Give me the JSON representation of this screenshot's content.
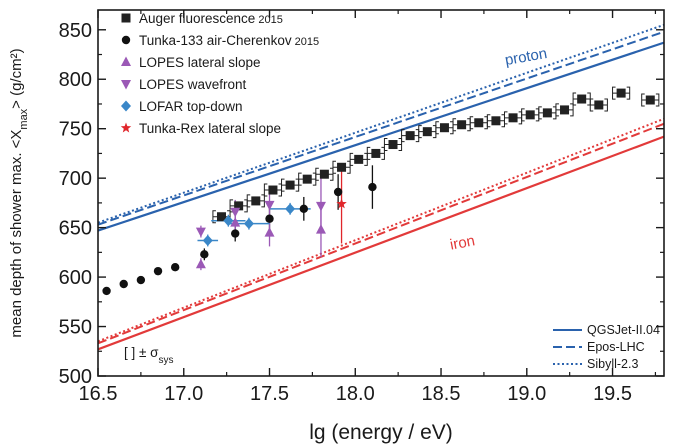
{
  "chart_data": {
    "type": "scatter",
    "xlabel": "lg (energy / eV)",
    "ylabel_prefix": "mean depth of shower max. <X",
    "ylabel_sub": "max",
    "ylabel_suffix": "> (g/cm²)",
    "xlim": [
      16.5,
      19.8
    ],
    "ylim": [
      500,
      870
    ],
    "x_ticks": [
      "16.5",
      "17.0",
      "17.5",
      "18.0",
      "18.5",
      "19.0",
      "19.5"
    ],
    "y_ticks": [
      "500",
      "550",
      "600",
      "650",
      "700",
      "750",
      "800",
      "850"
    ],
    "legend_position": "top-left",
    "sys_note": {
      "prefix": "[ ] ± σ",
      "sub": "sys"
    },
    "colors": {
      "auger": "#222222",
      "tunka": "#111111",
      "lopes": "#9b59b6",
      "lofar": "#3a87c8",
      "tunkarex": "#e0262b",
      "proton": "#2a62ad",
      "iron": "#e23a3a"
    },
    "series": [
      {
        "name": "Auger fluorescence",
        "name_suffix": "2015",
        "marker": "square",
        "color": "#222222",
        "points": [
          [
            17.22,
            661
          ],
          [
            17.32,
            672
          ],
          [
            17.42,
            677
          ],
          [
            17.52,
            688
          ],
          [
            17.62,
            693
          ],
          [
            17.72,
            699
          ],
          [
            17.82,
            704
          ],
          [
            17.92,
            711
          ],
          [
            18.02,
            719
          ],
          [
            18.12,
            725
          ],
          [
            18.22,
            734
          ],
          [
            18.32,
            743
          ],
          [
            18.42,
            747
          ],
          [
            18.52,
            751
          ],
          [
            18.62,
            754
          ],
          [
            18.72,
            756
          ],
          [
            18.82,
            758
          ],
          [
            18.92,
            761
          ],
          [
            19.02,
            764
          ],
          [
            19.12,
            766
          ],
          [
            19.22,
            769
          ],
          [
            19.32,
            780
          ],
          [
            19.42,
            774
          ],
          [
            19.55,
            786
          ],
          [
            19.72,
            779
          ]
        ],
        "err_x": 0.05
      },
      {
        "name": "Tunka-133 air-Cherenkov",
        "name_suffix": "2015",
        "marker": "circle",
        "color": "#111111",
        "points": [
          [
            16.55,
            586
          ],
          [
            16.65,
            593
          ],
          [
            16.75,
            597
          ],
          [
            16.85,
            606
          ],
          [
            16.95,
            610
          ],
          [
            17.12,
            623
          ],
          [
            17.3,
            644
          ],
          [
            17.5,
            659
          ],
          [
            17.7,
            669
          ],
          [
            17.9,
            686
          ],
          [
            18.1,
            691
          ]
        ],
        "y_err": [
          [
            0,
            0
          ],
          [
            0,
            0
          ],
          [
            0,
            0
          ],
          [
            0,
            0
          ],
          [
            0,
            0
          ],
          [
            6,
            6
          ],
          [
            8,
            8
          ],
          [
            10,
            10
          ],
          [
            12,
            12
          ],
          [
            18,
            18
          ],
          [
            22,
            22
          ]
        ]
      },
      {
        "name": "LOPES lateral slope",
        "marker": "triangle-up",
        "color": "#9b59b6",
        "points": [
          [
            17.1,
            613
          ],
          [
            17.3,
            655
          ],
          [
            17.5,
            645
          ],
          [
            17.8,
            648
          ]
        ],
        "y_err": [
          [
            6,
            6
          ],
          [
            12,
            12
          ],
          [
            14,
            14
          ],
          [
            28,
            28
          ]
        ]
      },
      {
        "name": "LOPES wavefront",
        "marker": "triangle-down",
        "color": "#9b59b6",
        "points": [
          [
            17.1,
            646
          ],
          [
            17.3,
            666
          ],
          [
            17.5,
            673
          ],
          [
            17.8,
            672
          ]
        ],
        "y_err": [
          [
            6,
            6
          ],
          [
            12,
            12
          ],
          [
            14,
            14
          ],
          [
            28,
            28
          ]
        ]
      },
      {
        "name": "LOFAR top-down",
        "marker": "diamond",
        "color": "#3a87c8",
        "points": [
          [
            17.14,
            637
          ],
          [
            17.26,
            657
          ],
          [
            17.38,
            654
          ],
          [
            17.62,
            669
          ]
        ],
        "x_err": [
          [
            0.06,
            0.06
          ],
          [
            0.1,
            0.1
          ],
          [
            0.12,
            0.12
          ],
          [
            0.12,
            0.12
          ]
        ],
        "y_err": [
          [
            6,
            6
          ],
          [
            6,
            6
          ],
          [
            6,
            6
          ],
          [
            6,
            6
          ]
        ]
      },
      {
        "name": "Tunka-Rex lateral slope",
        "marker": "star",
        "color": "#e0262b",
        "points": [
          [
            17.92,
            674
          ]
        ],
        "y_err": [
          [
            40,
            40
          ]
        ]
      }
    ],
    "models": [
      {
        "name": "QGSJet-II.04",
        "style": "solid",
        "proton": [
          [
            16.5,
            647
          ],
          [
            19.8,
            837
          ]
        ],
        "iron": [
          [
            16.5,
            527
          ],
          [
            19.8,
            742
          ]
        ]
      },
      {
        "name": "Epos-LHC",
        "style": "dashed",
        "proton": [
          [
            16.5,
            653
          ],
          [
            19.8,
            848
          ]
        ],
        "iron": [
          [
            16.5,
            533
          ],
          [
            19.8,
            755
          ]
        ]
      },
      {
        "name": "Sibyll-2.3",
        "style": "dotted",
        "proton": [
          [
            16.5,
            655
          ],
          [
            19.8,
            855
          ]
        ],
        "iron": [
          [
            16.5,
            535
          ],
          [
            19.8,
            760
          ]
        ]
      }
    ],
    "annotations": [
      {
        "text": "proton",
        "color": "#2a62ad",
        "x": 19.0,
        "y": 818,
        "rotate": -10
      },
      {
        "text": "iron",
        "color": "#e23a3a",
        "x": 18.63,
        "y": 630,
        "rotate": -11
      }
    ]
  }
}
